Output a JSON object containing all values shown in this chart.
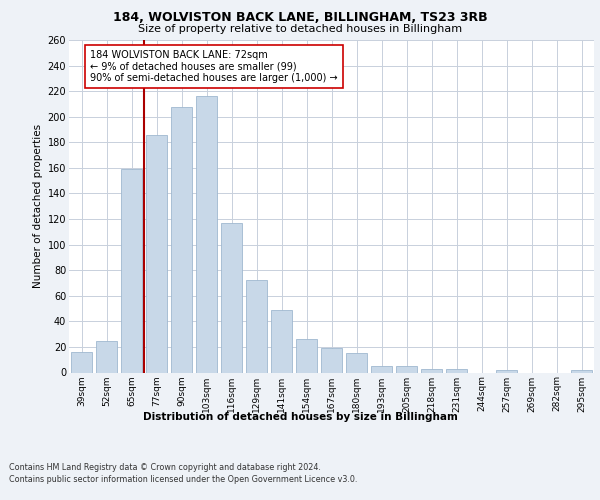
{
  "title1": "184, WOLVISTON BACK LANE, BILLINGHAM, TS23 3RB",
  "title2": "Size of property relative to detached houses in Billingham",
  "xlabel": "Distribution of detached houses by size in Billingham",
  "ylabel": "Number of detached properties",
  "categories": [
    "39sqm",
    "52sqm",
    "65sqm",
    "77sqm",
    "90sqm",
    "103sqm",
    "116sqm",
    "129sqm",
    "141sqm",
    "154sqm",
    "167sqm",
    "180sqm",
    "193sqm",
    "205sqm",
    "218sqm",
    "231sqm",
    "244sqm",
    "257sqm",
    "269sqm",
    "282sqm",
    "295sqm"
  ],
  "values": [
    16,
    25,
    159,
    186,
    208,
    216,
    117,
    72,
    49,
    26,
    19,
    15,
    5,
    5,
    3,
    3,
    0,
    2,
    0,
    0,
    2
  ],
  "bar_color": "#c8d8e8",
  "bar_edge_color": "#a0b8d0",
  "vline_x": 2.5,
  "vline_color": "#aa0000",
  "annotation_text": "184 WOLVISTON BACK LANE: 72sqm\n← 9% of detached houses are smaller (99)\n90% of semi-detached houses are larger (1,000) →",
  "annotation_box_color": "#ffffff",
  "annotation_box_edge": "#cc0000",
  "ylim": [
    0,
    260
  ],
  "yticks": [
    0,
    20,
    40,
    60,
    80,
    100,
    120,
    140,
    160,
    180,
    200,
    220,
    240,
    260
  ],
  "footer1": "Contains HM Land Registry data © Crown copyright and database right 2024.",
  "footer2": "Contains public sector information licensed under the Open Government Licence v3.0.",
  "bg_color": "#eef2f7",
  "plot_bg_color": "#ffffff",
  "grid_color": "#c8d0dc"
}
